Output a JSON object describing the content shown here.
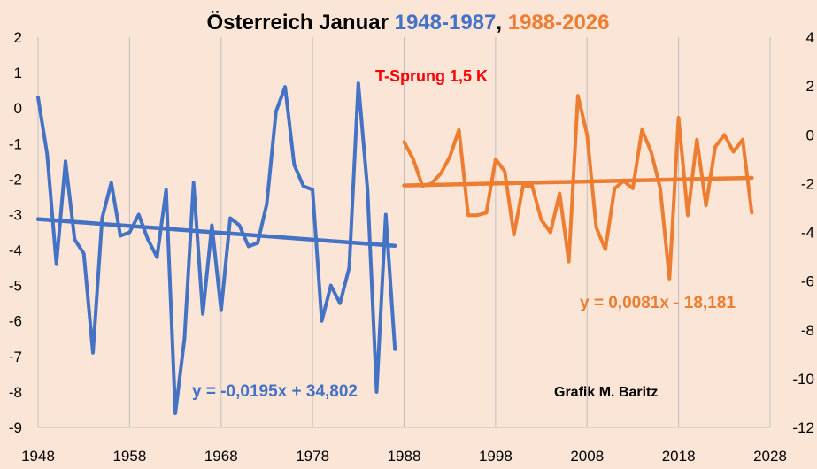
{
  "chart_data": {
    "type": "line",
    "title": {
      "part1": "Österreich Januar ",
      "part2": "1948-1987",
      "part3": ", ",
      "part4": "1988-2026"
    },
    "colors": {
      "series1": "#4472c4",
      "series2": "#ed7d31",
      "annotation": "#ff0000",
      "background": "#fbe5d6",
      "grid": "#bfbfbf"
    },
    "x_axis": {
      "range": [
        1948,
        2028
      ],
      "ticks": [
        "1948",
        "1958",
        "1968",
        "1978",
        "1988",
        "1998",
        "2008",
        "2018",
        "2028"
      ]
    },
    "y_left": {
      "range": [
        -9,
        2
      ],
      "ticks": [
        "2",
        "1",
        "0",
        "-1",
        "-2",
        "-3",
        "-4",
        "-5",
        "-6",
        "-7",
        "-8",
        "-9"
      ]
    },
    "y_right": {
      "range": [
        -12,
        4
      ],
      "ticks": [
        "4",
        "2",
        "0",
        "-2",
        "-4",
        "-6",
        "-8",
        "-10",
        "-12"
      ]
    },
    "grid": "vertical",
    "series": [
      {
        "axis": "left",
        "x": [
          1948,
          1949,
          1950,
          1951,
          1952,
          1953,
          1954,
          1955,
          1956,
          1957,
          1958,
          1959,
          1960,
          1961,
          1962,
          1963,
          1964,
          1965,
          1966,
          1967,
          1968,
          1969,
          1970,
          1971,
          1972,
          1973,
          1974,
          1975,
          1976,
          1977,
          1978,
          1979,
          1980,
          1981,
          1982,
          1983,
          1984,
          1985,
          1986,
          1987
        ],
        "values": [
          0.3,
          -1.3,
          -4.4,
          -1.5,
          -3.7,
          -4.1,
          -6.9,
          -3.1,
          -2.1,
          -3.6,
          -3.5,
          -3.0,
          -3.7,
          -4.2,
          -2.3,
          -8.6,
          -6.5,
          -2.1,
          -5.8,
          -3.3,
          -5.7,
          -3.1,
          -3.3,
          -3.9,
          -3.8,
          -2.7,
          -0.1,
          0.6,
          -1.6,
          -2.2,
          -2.3,
          -6.0,
          -5.0,
          -5.5,
          -4.5,
          0.7,
          -2.3,
          -8.0,
          -3.0,
          -6.8
        ]
      },
      {
        "axis": "right",
        "x": [
          1988,
          1989,
          1990,
          1991,
          1992,
          1993,
          1994,
          1995,
          1996,
          1997,
          1998,
          1999,
          2000,
          2001,
          2002,
          2003,
          2004,
          2005,
          2006,
          2007,
          2008,
          2009,
          2010,
          2011,
          2012,
          2013,
          2014,
          2015,
          2016,
          2017,
          2018,
          2019,
          2020,
          2021,
          2022,
          2023,
          2024,
          2025,
          2026
        ],
        "values": [
          -0.3,
          -1.0,
          -2.1,
          -2.0,
          -1.6,
          -0.9,
          0.2,
          -3.3,
          -3.3,
          -3.2,
          -1.0,
          -1.5,
          -4.1,
          -2.1,
          -2.1,
          -3.5,
          -4.0,
          -2.4,
          -5.2,
          1.6,
          -0.0,
          -3.8,
          -4.7,
          -2.2,
          -1.9,
          -2.2,
          0.2,
          -0.7,
          -2.2,
          -5.9,
          0.7,
          -3.3,
          -0.2,
          -2.9,
          -0.5,
          0.0,
          -0.7,
          -0.2,
          -3.2
        ]
      }
    ],
    "trendlines": [
      {
        "label": "y = -0,0195x + 34,802",
        "axis": "left",
        "x": [
          1948,
          1987
        ],
        "values": [
          -3.13,
          -3.88
        ]
      },
      {
        "label": "y = 0,0081x - 18,181",
        "axis": "right",
        "x": [
          1988,
          2026
        ],
        "values": [
          -2.08,
          -1.77
        ]
      }
    ],
    "annotations": {
      "jump": "T-Sprung 1,5 K",
      "credit": "Grafik M. Baritz"
    }
  }
}
